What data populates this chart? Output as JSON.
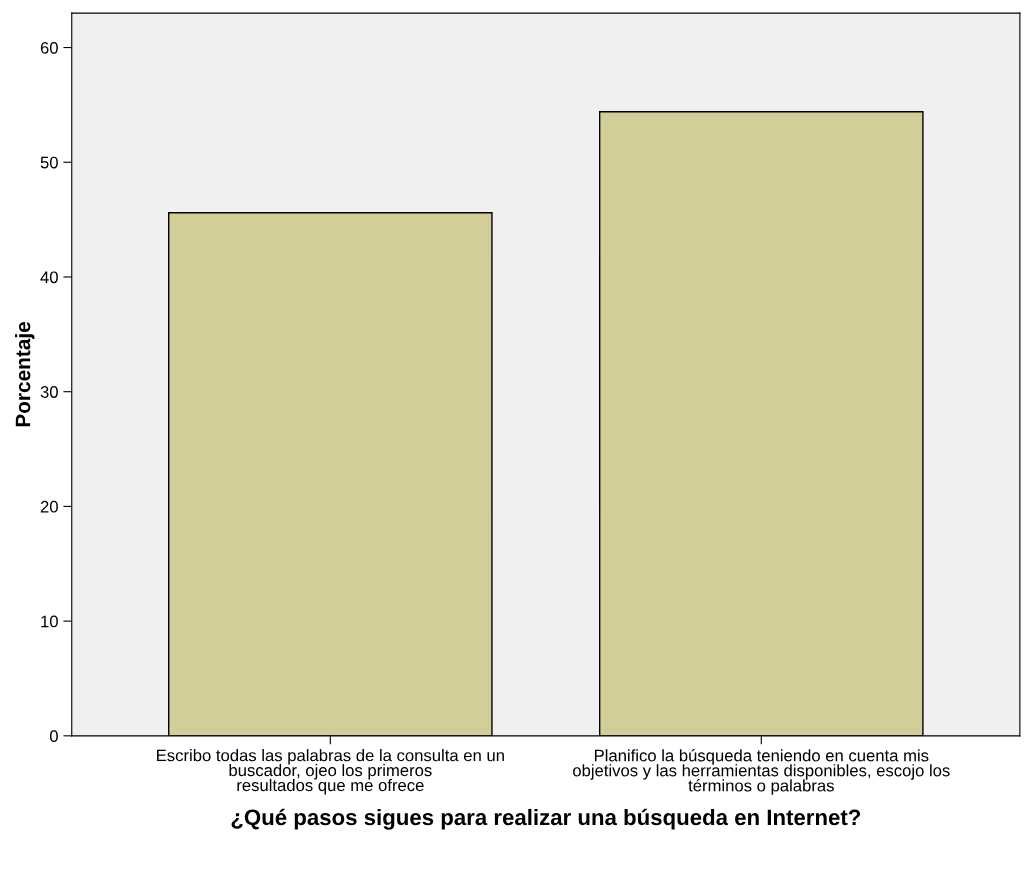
{
  "chart_data": {
    "type": "bar",
    "xlabel": "¿Qué pasos sigues para realizar una búsqueda en Internet?",
    "ylabel": "Porcentaje",
    "categories": [
      "Escribo todas las palabras de la consulta en un\nbuscador, ojeo los primeros\nresultados que me ofrece",
      "Planifico la búsqueda teniendo en cuenta mis\nobjetivos y las herramientas disponibles, escojo los\ntérminos o palabras"
    ],
    "values": [
      45.6,
      54.4
    ],
    "color": "#d3ce97",
    "ylim": [
      0,
      63
    ],
    "yticks": [
      0,
      10,
      20,
      30,
      40,
      50,
      60
    ],
    "grid": false
  }
}
